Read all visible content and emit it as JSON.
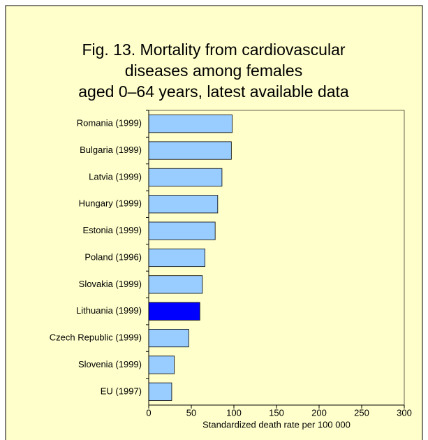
{
  "chart_data": {
    "type": "hbar",
    "title": [
      "Fig. 13. Mortality from cardiovascular",
      "diseases among females",
      "aged 0–64 years, latest available data"
    ],
    "xlabel": "Standardized death rate per 100 000",
    "categories": [
      "Romania (1999)",
      "Bulgaria (1999)",
      "Latvia (1999)",
      "Hungary (1999)",
      "Estonia (1999)",
      "Poland (1996)",
      "Slovakia (1999)",
      "Lithuania (1999)",
      "Czech Republic (1999)",
      "Slovenia (1999)",
      "EU (1997)"
    ],
    "values": [
      98,
      97,
      86,
      81,
      78,
      66,
      63,
      60,
      47,
      30,
      27
    ],
    "colors": [
      "#99ccff",
      "#99ccff",
      "#99ccff",
      "#99ccff",
      "#99ccff",
      "#99ccff",
      "#99ccff",
      "#0000ff",
      "#99ccff",
      "#99ccff",
      "#99ccff"
    ],
    "xlim": [
      0,
      300
    ],
    "xticks": [
      0,
      50,
      100,
      150,
      200,
      250,
      300
    ]
  }
}
